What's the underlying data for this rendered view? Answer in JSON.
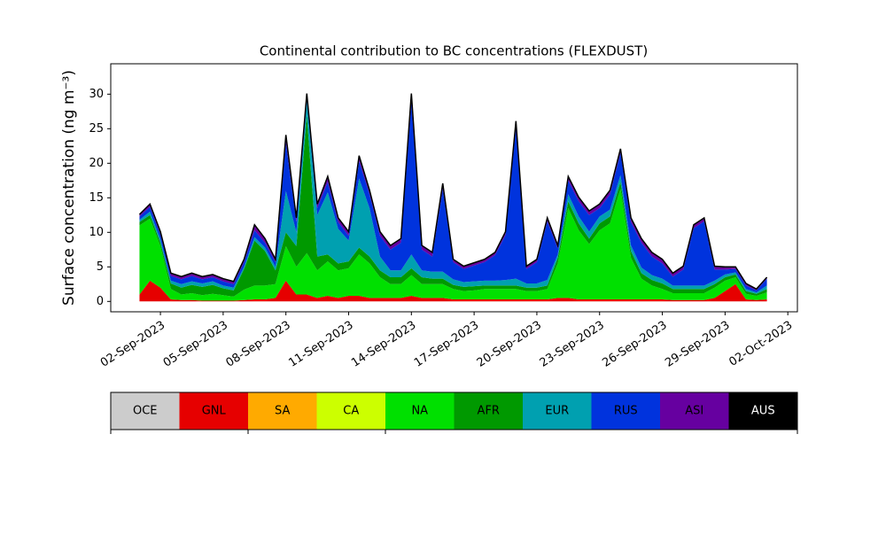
{
  "chart_data": {
    "type": "stacked_area",
    "title": "Continental contribution to BC concentrations (FLEXDUST)",
    "y_label": "Surface concentration (ng m⁻³)",
    "x": [
      "2023-09-01T00:00",
      "2023-09-01T12:00",
      "2023-09-02T00:00",
      "2023-09-02T12:00",
      "2023-09-03T00:00",
      "2023-09-03T12:00",
      "2023-09-04T00:00",
      "2023-09-04T12:00",
      "2023-09-05T00:00",
      "2023-09-05T12:00",
      "2023-09-06T00:00",
      "2023-09-06T12:00",
      "2023-09-07T00:00",
      "2023-09-07T12:00",
      "2023-09-08T00:00",
      "2023-09-08T12:00",
      "2023-09-09T00:00",
      "2023-09-09T12:00",
      "2023-09-10T00:00",
      "2023-09-10T12:00",
      "2023-09-11T00:00",
      "2023-09-11T12:00",
      "2023-09-12T00:00",
      "2023-09-12T12:00",
      "2023-09-13T00:00",
      "2023-09-13T12:00",
      "2023-09-14T00:00",
      "2023-09-14T12:00",
      "2023-09-15T00:00",
      "2023-09-15T12:00",
      "2023-09-16T00:00",
      "2023-09-16T12:00",
      "2023-09-17T00:00",
      "2023-09-17T12:00",
      "2023-09-18T00:00",
      "2023-09-18T12:00",
      "2023-09-19T00:00",
      "2023-09-19T12:00",
      "2023-09-20T00:00",
      "2023-09-20T12:00",
      "2023-09-21T00:00",
      "2023-09-21T12:00",
      "2023-09-22T00:00",
      "2023-09-22T12:00",
      "2023-09-23T00:00",
      "2023-09-23T12:00",
      "2023-09-24T00:00",
      "2023-09-24T12:00",
      "2023-09-25T00:00",
      "2023-09-25T12:00",
      "2023-09-26T00:00",
      "2023-09-26T12:00",
      "2023-09-27T00:00",
      "2023-09-27T12:00",
      "2023-09-28T00:00",
      "2023-09-28T12:00",
      "2023-09-29T00:00",
      "2023-09-29T12:00",
      "2023-09-30T00:00",
      "2023-09-30T12:00",
      "2023-10-01T00:00"
    ],
    "series": [
      {
        "name": "OCE",
        "color": "#cccccc",
        "values": [
          0,
          0,
          0,
          0,
          0,
          0,
          0,
          0,
          0,
          0,
          0,
          0,
          0,
          0,
          0,
          0,
          0,
          0,
          0,
          0,
          0,
          0,
          0,
          0,
          0,
          0,
          0,
          0,
          0,
          0,
          0,
          0,
          0,
          0,
          0,
          0,
          0,
          0,
          0,
          0,
          0,
          0,
          0,
          0,
          0,
          0,
          0,
          0,
          0,
          0,
          0,
          0,
          0,
          0,
          0,
          0,
          0,
          0,
          0,
          0,
          0
        ]
      },
      {
        "name": "GNL",
        "color": "#e60000",
        "values": [
          1,
          3,
          2,
          0.3,
          0.2,
          0.2,
          0.1,
          0.1,
          0.1,
          0.1,
          0.2,
          0.3,
          0.3,
          0.5,
          3,
          1,
          1,
          0.5,
          0.8,
          0.5,
          0.8,
          0.8,
          0.5,
          0.5,
          0.5,
          0.5,
          0.8,
          0.5,
          0.5,
          0.5,
          0.3,
          0.3,
          0.3,
          0.3,
          0.3,
          0.3,
          0.3,
          0.3,
          0.3,
          0.3,
          0.5,
          0.5,
          0.3,
          0.3,
          0.3,
          0.3,
          0.3,
          0.3,
          0.3,
          0.3,
          0.3,
          0.2,
          0.2,
          0.2,
          0.2,
          0.5,
          1.5,
          2.5,
          0.3,
          0.2,
          0.3
        ]
      },
      {
        "name": "SA",
        "color": "#ffaa00",
        "values": [
          0,
          0,
          0,
          0,
          0,
          0,
          0,
          0,
          0,
          0,
          0,
          0,
          0,
          0,
          0,
          0,
          0,
          0,
          0,
          0,
          0,
          0,
          0,
          0,
          0,
          0,
          0,
          0,
          0,
          0,
          0,
          0,
          0,
          0,
          0,
          0,
          0,
          0,
          0,
          0,
          0,
          0,
          0,
          0,
          0,
          0,
          0,
          0,
          0,
          0,
          0,
          0,
          0,
          0,
          0,
          0,
          0,
          0,
          0,
          0,
          0
        ]
      },
      {
        "name": "CA",
        "color": "#ccff00",
        "values": [
          0,
          0,
          0,
          0,
          0,
          0,
          0,
          0,
          0,
          0,
          0,
          0,
          0,
          0,
          0,
          0,
          0,
          0,
          0,
          0,
          0,
          0,
          0,
          0,
          0,
          0,
          0,
          0,
          0,
          0,
          0,
          0,
          0,
          0,
          0,
          0,
          0,
          0,
          0,
          0,
          0,
          0,
          0,
          0,
          0,
          0,
          0,
          0,
          0,
          0,
          0,
          0,
          0,
          0,
          0,
          0,
          0,
          0,
          0,
          0,
          0
        ]
      },
      {
        "name": "NA",
        "color": "#00e000",
        "values": [
          10,
          9,
          6,
          1.5,
          0.8,
          1,
          0.8,
          1,
          0.8,
          0.6,
          1.5,
          2,
          2,
          2,
          5,
          4,
          6,
          4,
          5,
          4,
          4,
          6,
          5,
          3,
          2,
          2,
          3,
          2,
          2,
          2,
          1.5,
          1.2,
          1.3,
          1.5,
          1.5,
          1.5,
          1.5,
          1.2,
          1.2,
          1.5,
          5,
          13,
          10,
          8,
          10,
          11,
          16,
          6,
          3,
          2,
          1.5,
          1,
          1,
          1,
          1,
          1.5,
          1.5,
          1,
          0.8,
          0.6,
          1
        ]
      },
      {
        "name": "AFR",
        "color": "#009900",
        "values": [
          0.5,
          0.5,
          0.5,
          0.8,
          1,
          1.2,
          1.2,
          1.3,
          1,
          0.9,
          3,
          6.5,
          5,
          2,
          2,
          3,
          20,
          2,
          1,
          1,
          1,
          1,
          1,
          1,
          1,
          1,
          1,
          1,
          0.8,
          0.8,
          0.6,
          0.6,
          0.6,
          0.5,
          0.5,
          0.5,
          0.5,
          0.5,
          0.5,
          0.5,
          0.8,
          1,
          1,
          0.8,
          1,
          1,
          1,
          1,
          0.8,
          0.8,
          0.8,
          0.6,
          0.6,
          0.6,
          0.6,
          0.5,
          0.5,
          0.4,
          0.4,
          0.3,
          0.5
        ]
      },
      {
        "name": "EUR",
        "color": "#00a0b0",
        "values": [
          0.3,
          0.5,
          0.5,
          0.4,
          0.5,
          0.5,
          0.5,
          0.5,
          0.4,
          0.4,
          0.3,
          0.5,
          0.5,
          0.5,
          6,
          2,
          2,
          6,
          9,
          5,
          3,
          10,
          7,
          2,
          1,
          1,
          2,
          1,
          1,
          1,
          0.8,
          0.7,
          0.7,
          0.7,
          0.7,
          0.8,
          1,
          0.6,
          0.6,
          0.8,
          0.5,
          1,
          1,
          1,
          1,
          1,
          1,
          0.8,
          0.8,
          0.7,
          0.7,
          0.5,
          0.5,
          0.5,
          0.5,
          0.5,
          0.4,
          0.3,
          0.3,
          0.2,
          0.5
        ]
      },
      {
        "name": "RUS",
        "color": "#0033dd",
        "values": [
          0.5,
          0.7,
          0.7,
          0.7,
          0.7,
          0.8,
          0.6,
          0.6,
          0.6,
          0.5,
          0.7,
          1,
          0.7,
          0.7,
          7,
          1.5,
          0.7,
          1,
          1.5,
          1,
          0.7,
          2.5,
          2,
          3,
          3,
          4,
          22,
          3,
          2.2,
          12,
          2.5,
          1.9,
          2.3,
          2.7,
          3.7,
          6.5,
          22,
          2.1,
          3.1,
          8.5,
          0.9,
          2,
          2.2,
          2.4,
          1.2,
          2.2,
          3.2,
          3.4,
          3.6,
          2.7,
          2.2,
          1.3,
          2.3,
          8.3,
          9.3,
          1.6,
          0.7,
          0.5,
          0.5,
          0.3,
          1
        ]
      },
      {
        "name": "ASI",
        "color": "#6600a0",
        "values": [
          0.2,
          0.3,
          0.3,
          0.3,
          0.3,
          0.3,
          0.3,
          0.3,
          0.3,
          0.3,
          0.3,
          0.7,
          0.5,
          0.3,
          1,
          0.5,
          0.3,
          0.5,
          0.7,
          0.5,
          0.5,
          0.7,
          0.5,
          0.5,
          0.5,
          0.5,
          1.2,
          0.5,
          0.5,
          0.7,
          0.3,
          0.3,
          0.3,
          0.3,
          0.3,
          0.4,
          0.7,
          0.3,
          0.3,
          0.4,
          0.3,
          0.5,
          0.5,
          0.5,
          0.5,
          0.5,
          0.5,
          0.5,
          0.5,
          0.5,
          0.5,
          0.4,
          0.4,
          0.4,
          0.4,
          0.4,
          0.3,
          0.2,
          0.2,
          0.1,
          0.1
        ]
      },
      {
        "name": "AUS",
        "color": "#000000",
        "values": [
          0.1,
          0.1,
          0.1,
          0.1,
          0.1,
          0.1,
          0.1,
          0.1,
          0.1,
          0.1,
          0.1,
          0.1,
          0.1,
          0.1,
          0.1,
          0.1,
          0.1,
          0.1,
          0.1,
          0.1,
          0.1,
          0.1,
          0.1,
          0.1,
          0.1,
          0.1,
          0.1,
          0.1,
          0.1,
          0.1,
          0.1,
          0.1,
          0.1,
          0.1,
          0.1,
          0.1,
          0.1,
          0.1,
          0.1,
          0.1,
          0.1,
          0.1,
          0.1,
          0.1,
          0.1,
          0.1,
          0.1,
          0.1,
          0.1,
          0.1,
          0.1,
          0.1,
          0.1,
          0.1,
          0.1,
          0.1,
          0.1,
          0.1,
          0.1,
          0.1,
          0.1
        ]
      }
    ],
    "xlim": [
      "2023-08-30T15:00",
      "2023-10-02T11:00"
    ],
    "xticks": [
      {
        "value": "2023-09-02T00:00",
        "label": "02-Sep-2023"
      },
      {
        "value": "2023-09-05T00:00",
        "label": "05-Sep-2023"
      },
      {
        "value": "2023-09-08T00:00",
        "label": "08-Sep-2023"
      },
      {
        "value": "2023-09-11T00:00",
        "label": "11-Sep-2023"
      },
      {
        "value": "2023-09-14T00:00",
        "label": "14-Sep-2023"
      },
      {
        "value": "2023-09-17T00:00",
        "label": "17-Sep-2023"
      },
      {
        "value": "2023-09-20T00:00",
        "label": "20-Sep-2023"
      },
      {
        "value": "2023-09-23T00:00",
        "label": "23-Sep-2023"
      },
      {
        "value": "2023-09-26T00:00",
        "label": "26-Sep-2023"
      },
      {
        "value": "2023-09-29T00:00",
        "label": "29-Sep-2023"
      },
      {
        "value": "2023-10-02T00:00",
        "label": "02-Oct-2023"
      }
    ],
    "ylim": [
      -1.5,
      34.4
    ],
    "yticks": [
      0,
      5,
      10,
      15,
      20,
      25,
      30
    ]
  }
}
